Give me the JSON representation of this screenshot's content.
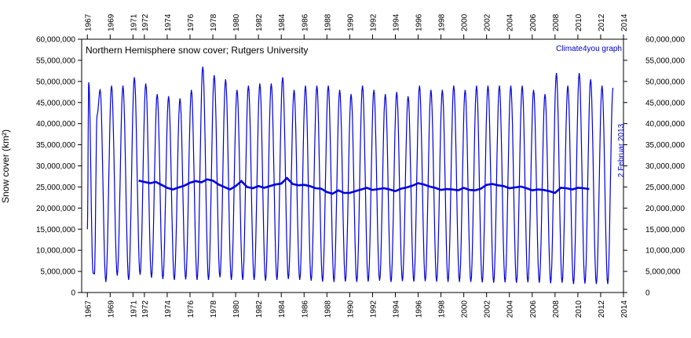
{
  "chart_data": {
    "type": "line",
    "title": "Northern Hemisphere snow cover; Rutgers University",
    "credit": "Climate4you graph",
    "date_note": "2 Februar 2013",
    "ylabel": "Snow cover (km²)",
    "xlabel": "",
    "xlim": [
      1966.5,
      2014.0
    ],
    "ylim": [
      0,
      60000000
    ],
    "grid": false,
    "x_ticks": [
      1967,
      1969,
      1971,
      1972,
      1974,
      1976,
      1978,
      1980,
      1982,
      1984,
      1986,
      1988,
      1990,
      1992,
      1994,
      1996,
      1998,
      2000,
      2002,
      2004,
      2006,
      2008,
      2010,
      2012,
      2014
    ],
    "y_ticks": [
      0,
      5000000,
      10000000,
      15000000,
      20000000,
      25000000,
      30000000,
      35000000,
      40000000,
      45000000,
      50000000,
      55000000,
      60000000
    ],
    "y_tick_labels": [
      "0",
      "5,000,000",
      "10,000,000",
      "15,000,000",
      "20,000,000",
      "25,000,000",
      "30,000,000",
      "35,000,000",
      "40,000,000",
      "45,000,000",
      "50,000,000",
      "55,000,000",
      "60,000,000"
    ],
    "series": [
      {
        "name": "",
        "color": "#0000dd",
        "kind": "monthly",
        "x": [
          1967.0,
          1967.12,
          1967.5,
          1967.62,
          1967.85,
          1968.12,
          1968.62,
          1969.12,
          1969.62,
          1970.12,
          1970.62,
          1971.12,
          1971.62,
          1972.12,
          1972.62,
          1973.12,
          1973.62,
          1974.12,
          1974.62,
          1975.12,
          1975.62,
          1976.12,
          1976.62,
          1977.12,
          1977.62,
          1978.12,
          1978.62,
          1979.12,
          1979.62,
          1980.12,
          1980.62,
          1981.12,
          1981.62,
          1982.12,
          1982.62,
          1983.12,
          1983.62,
          1984.12,
          1984.62,
          1985.12,
          1985.62,
          1986.12,
          1986.62,
          1987.12,
          1987.62,
          1988.12,
          1988.62,
          1989.12,
          1989.62,
          1990.12,
          1990.62,
          1991.12,
          1991.62,
          1992.12,
          1992.62,
          1993.12,
          1993.62,
          1994.12,
          1994.62,
          1995.12,
          1995.62,
          1996.12,
          1996.62,
          1997.12,
          1997.62,
          1998.12,
          1998.62,
          1999.12,
          1999.62,
          2000.12,
          2000.62,
          2001.12,
          2001.62,
          2002.12,
          2002.62,
          2003.12,
          2003.62,
          2004.12,
          2004.62,
          2005.12,
          2005.62,
          2006.12,
          2006.62,
          2007.12,
          2007.62,
          2008.12,
          2008.62,
          2009.12,
          2009.62,
          2010.12,
          2010.62,
          2011.12,
          2011.62,
          2012.12,
          2012.62,
          2013.08
        ],
        "y": [
          15000000,
          49800000,
          4600000,
          4400000,
          42000000,
          48000000,
          2500000,
          49000000,
          4000000,
          49000000,
          3000000,
          51000000,
          4200000,
          49500000,
          3500000,
          47000000,
          3200000,
          46500000,
          3000000,
          46000000,
          3100000,
          48000000,
          3000000,
          53500000,
          3000000,
          51500000,
          3600000,
          50500000,
          3000000,
          48000000,
          3000000,
          49000000,
          3000000,
          49500000,
          2800000,
          49500000,
          3000000,
          51000000,
          3200000,
          48000000,
          3000000,
          49000000,
          2800000,
          49000000,
          2600000,
          49000000,
          2500000,
          48000000,
          2600000,
          47000000,
          2500000,
          49000000,
          2600000,
          48000000,
          2800000,
          47000000,
          2500000,
          47500000,
          2700000,
          46500000,
          2600000,
          49000000,
          2700000,
          48000000,
          2600000,
          48000000,
          2500000,
          49000000,
          2500000,
          48000000,
          2500000,
          49000000,
          2400000,
          49000000,
          2300000,
          49000000,
          2400000,
          49000000,
          2300000,
          49000000,
          2400000,
          48000000,
          2300000,
          47000000,
          2200000,
          52000000,
          2300000,
          49000000,
          2000000,
          52000000,
          2100000,
          50500000,
          2000000,
          49000000,
          2000000,
          48500000
        ]
      },
      {
        "name": "",
        "color": "#0000dd",
        "kind": "running_mean",
        "x": [
          1971.5,
          1972.0,
          1972.5,
          1973.0,
          1973.5,
          1974.0,
          1974.5,
          1975.0,
          1975.5,
          1976.0,
          1976.5,
          1977.0,
          1977.5,
          1978.0,
          1978.5,
          1979.0,
          1979.5,
          1980.0,
          1980.5,
          1981.0,
          1981.5,
          1982.0,
          1982.5,
          1983.0,
          1983.5,
          1984.0,
          1984.5,
          1985.0,
          1985.5,
          1986.0,
          1986.5,
          1987.0,
          1987.5,
          1988.0,
          1988.5,
          1989.0,
          1989.5,
          1990.0,
          1990.5,
          1991.0,
          1991.5,
          1992.0,
          1992.5,
          1993.0,
          1993.5,
          1994.0,
          1994.5,
          1995.0,
          1995.5,
          1996.0,
          1996.5,
          1997.0,
          1997.5,
          1998.0,
          1998.5,
          1999.0,
          1999.5,
          2000.0,
          2000.5,
          2001.0,
          2001.5,
          2002.0,
          2002.5,
          2003.0,
          2003.5,
          2004.0,
          2004.5,
          2005.0,
          2005.5,
          2006.0,
          2006.5,
          2007.0,
          2007.5,
          2008.0,
          2008.5,
          2009.0,
          2009.5,
          2010.0,
          2010.5,
          2011.0
        ],
        "y": [
          26500000,
          26200000,
          25900000,
          26200000,
          25500000,
          24800000,
          24400000,
          24900000,
          25300000,
          26000000,
          26400000,
          26100000,
          26800000,
          26500000,
          25600000,
          25000000,
          24400000,
          25200000,
          26400000,
          25000000,
          24700000,
          25200000,
          24800000,
          25200000,
          25600000,
          25800000,
          27100000,
          25700000,
          25400000,
          25500000,
          25200000,
          24700000,
          24600000,
          23800000,
          23400000,
          24200000,
          23600000,
          23600000,
          24000000,
          24400000,
          24800000,
          24300000,
          24500000,
          24700000,
          24400000,
          24000000,
          24600000,
          24900000,
          25300000,
          25900000,
          25600000,
          25100000,
          24800000,
          24300000,
          24500000,
          24400000,
          24200000,
          24800000,
          24300000,
          24200000,
          24600000,
          25500000,
          25700000,
          25400000,
          25200000,
          24700000,
          24900000,
          25100000,
          24700000,
          24200000,
          24400000,
          24300000,
          24000000,
          23600000,
          24800000,
          24700000,
          24400000,
          24800000,
          24700000,
          24500000
        ]
      }
    ]
  }
}
